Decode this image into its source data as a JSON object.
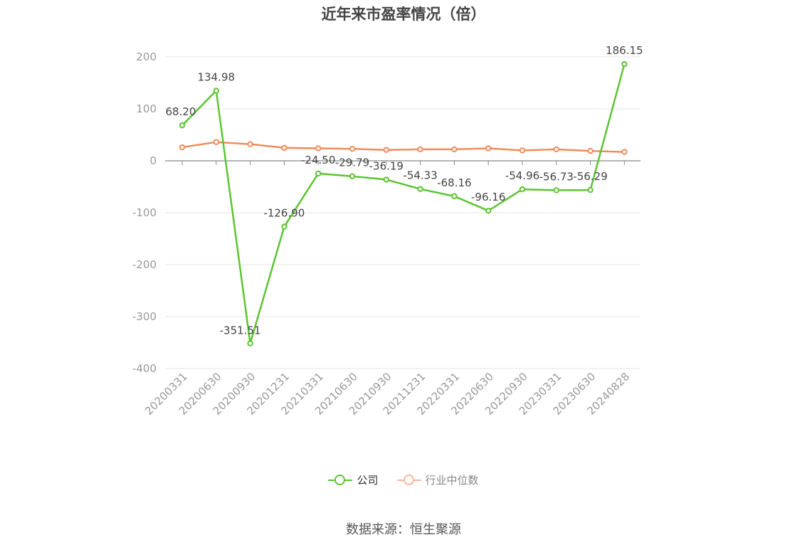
{
  "chart_data": {
    "type": "line",
    "title": "近年来市盈率情况（倍）",
    "categories": [
      "20200331",
      "20200630",
      "20200930",
      "20201231",
      "20210331",
      "20210630",
      "20210930",
      "20211231",
      "20220331",
      "20220630",
      "20220930",
      "20230331",
      "20230630",
      "20240828"
    ],
    "series": [
      {
        "name": "公司",
        "color": "#5cc531",
        "values": [
          68.2,
          134.98,
          -351.51,
          -126.9,
          -24.5,
          -29.79,
          -36.19,
          -54.33,
          -68.16,
          -96.16,
          -54.96,
          -56.73,
          -56.29,
          186.15
        ],
        "labels": [
          "68.20",
          "134.98",
          "-351.51",
          "-126.90",
          "-24.50",
          "-29.79",
          "-36.19",
          "-54.33",
          "-68.16",
          "-96.16",
          "-54.96",
          "-56.73",
          "-56.29",
          "186.15"
        ]
      },
      {
        "name": "行业中位数",
        "color": "#f28b5b",
        "values": [
          26,
          36,
          32,
          25,
          24,
          23,
          21,
          22,
          22,
          24,
          20,
          22,
          19,
          17
        ]
      }
    ],
    "ylim": [
      -400,
      200
    ],
    "yticks": [
      -400,
      -300,
      -200,
      -100,
      0,
      100,
      200
    ],
    "ytick_labels": [
      "-400",
      "-300",
      "-200",
      "-100",
      "0",
      "100",
      "200"
    ],
    "grid": true,
    "legend_position": "bottom-center"
  },
  "source": "数据来源：恒生聚源"
}
